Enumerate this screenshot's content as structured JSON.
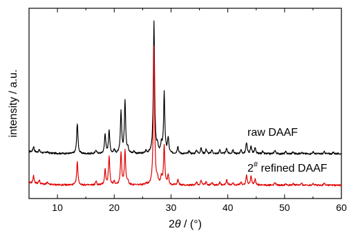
{
  "chart_data": {
    "type": "line",
    "xlabel": "2θ / (°)",
    "ylabel": "intensity / a.u.",
    "xlim": [
      5,
      60
    ],
    "ylim": [
      0,
      100
    ],
    "x_ticks": [
      10,
      20,
      30,
      40,
      50,
      60
    ],
    "y_ticks_shown": false,
    "grid": false,
    "legend": "inline-labels",
    "series": [
      {
        "name": "raw DAAF",
        "color": "#000000",
        "baseline": 23.5,
        "peaks": [
          [
            5.8,
            3
          ],
          [
            6.8,
            1.5
          ],
          [
            8.2,
            0.7
          ],
          [
            13.5,
            16
          ],
          [
            16.8,
            2
          ],
          [
            18.4,
            10.5
          ],
          [
            19.1,
            12.5
          ],
          [
            20.0,
            2
          ],
          [
            21.2,
            22
          ],
          [
            21.9,
            28
          ],
          [
            22.4,
            3
          ],
          [
            23.5,
            1.2
          ],
          [
            25.6,
            1.5
          ],
          [
            27.0,
            69
          ],
          [
            27.6,
            4
          ],
          [
            28.3,
            5
          ],
          [
            28.8,
            32
          ],
          [
            29.5,
            8
          ],
          [
            31.2,
            4
          ],
          [
            33.2,
            1.5
          ],
          [
            34.5,
            2
          ],
          [
            35.3,
            3
          ],
          [
            36.2,
            2.5
          ],
          [
            37.2,
            2
          ],
          [
            38.6,
            2
          ],
          [
            39.8,
            3
          ],
          [
            40.9,
            2
          ],
          [
            42.3,
            2
          ],
          [
            43.3,
            6
          ],
          [
            44.1,
            4
          ],
          [
            44.8,
            3
          ],
          [
            46.1,
            1.2
          ],
          [
            48.3,
            2
          ],
          [
            50.2,
            1
          ],
          [
            51.5,
            1
          ],
          [
            53.0,
            1
          ],
          [
            55.0,
            1
          ],
          [
            57.0,
            1
          ],
          [
            58.6,
            0.8
          ]
        ]
      },
      {
        "name": "2# refined DAAF",
        "color": "#e00000",
        "baseline": 7,
        "peaks": [
          [
            5.8,
            4
          ],
          [
            6.8,
            2
          ],
          [
            8.2,
            1
          ],
          [
            13.5,
            12
          ],
          [
            16.8,
            2
          ],
          [
            18.4,
            8
          ],
          [
            19.1,
            15
          ],
          [
            20.0,
            2
          ],
          [
            21.2,
            17
          ],
          [
            21.9,
            18
          ],
          [
            22.4,
            2
          ],
          [
            25.6,
            1
          ],
          [
            27.0,
            73
          ],
          [
            27.6,
            3
          ],
          [
            28.3,
            4
          ],
          [
            28.8,
            21
          ],
          [
            29.5,
            5
          ],
          [
            31.2,
            3
          ],
          [
            34.5,
            1.5
          ],
          [
            35.3,
            2.5
          ],
          [
            36.2,
            2
          ],
          [
            37.2,
            1.5
          ],
          [
            38.6,
            1.5
          ],
          [
            39.8,
            3
          ],
          [
            40.9,
            1.5
          ],
          [
            42.3,
            1.5
          ],
          [
            43.3,
            5
          ],
          [
            44.1,
            5
          ],
          [
            44.8,
            3
          ],
          [
            48.3,
            1.5
          ],
          [
            50.2,
            1
          ],
          [
            51.5,
            1
          ],
          [
            53.0,
            1
          ],
          [
            55.0,
            1
          ],
          [
            57.0,
            1
          ]
        ]
      }
    ]
  },
  "labels": {
    "raw": "raw DAAF",
    "refined_prefix": "2",
    "refined_superscript": "#",
    "refined_suffix": " refined DAAF",
    "xlabel_symbol": "2",
    "xlabel_theta": "θ",
    "xlabel_unit": " / (°)"
  }
}
